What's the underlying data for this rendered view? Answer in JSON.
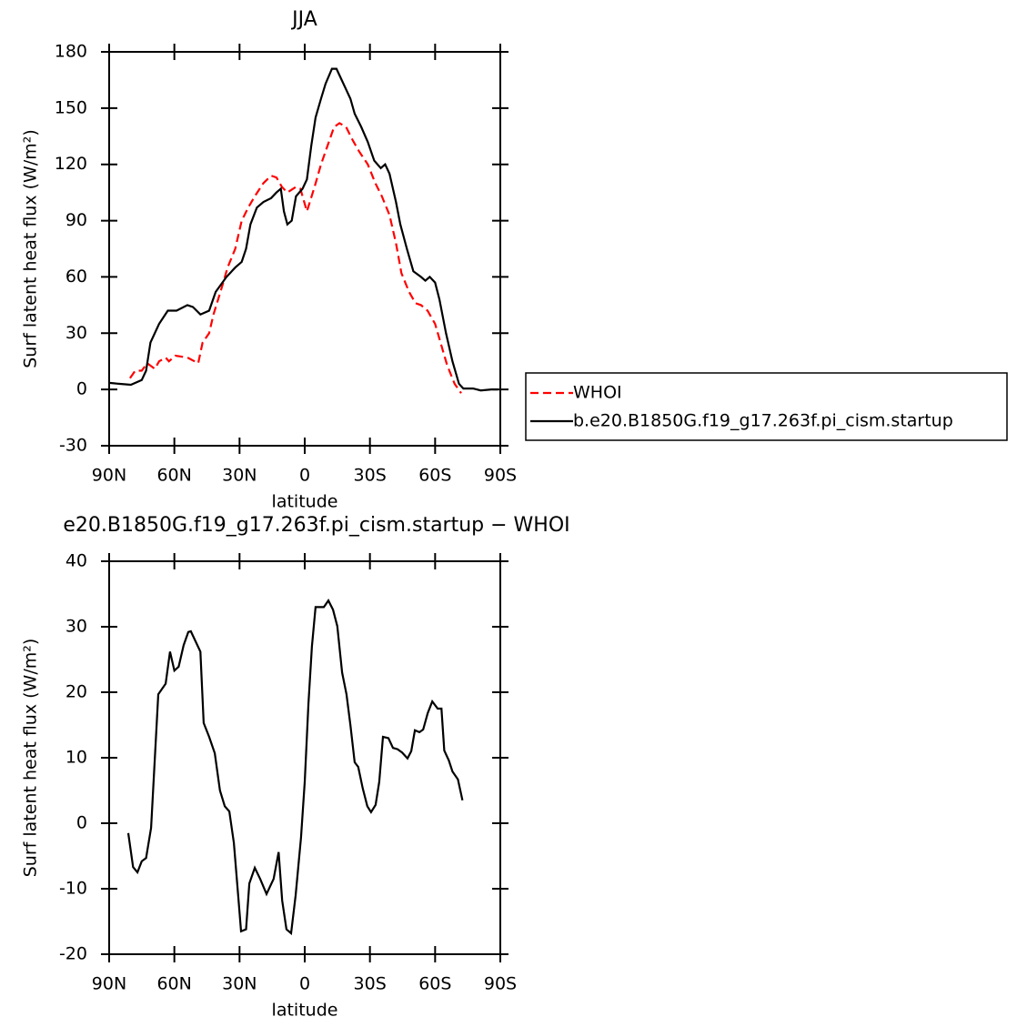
{
  "chart_data": [
    {
      "type": "line",
      "title": "JJA",
      "xlabel": "latitude",
      "ylabel": "Surf latent heat flux (W/m²)",
      "xlim": [
        90,
        -90
      ],
      "xticks": [
        {
          "value": 90,
          "label": "90N"
        },
        {
          "value": 60,
          "label": "60N"
        },
        {
          "value": 30,
          "label": "30N"
        },
        0,
        {
          "value": -30,
          "label": "30S"
        },
        {
          "value": -60,
          "label": "60S"
        },
        {
          "value": -90,
          "label": "90S"
        }
      ],
      "ylim": [
        -30,
        180
      ],
      "yticks": [
        -30,
        0,
        30,
        60,
        90,
        120,
        150,
        180
      ],
      "legend": "right",
      "series": [
        {
          "name": "WHOI",
          "color": "#ff0000",
          "style": "dashed",
          "x": [
            80.4,
            78,
            75,
            72.5,
            69,
            67,
            64,
            62.5,
            59.5,
            54,
            49,
            47,
            44,
            42,
            38,
            35.5,
            32,
            29,
            26,
            23,
            19,
            15.5,
            13,
            10.5,
            8,
            4,
            2,
            -1,
            -4.5,
            -7.5,
            -10.5,
            -13.5,
            -16,
            -19,
            -22,
            -25,
            -29,
            -32.5,
            -35.5,
            -39,
            -42,
            -44.5,
            -48,
            -51,
            -53.5,
            -56.5,
            -60,
            -62.5,
            -65.5,
            -69,
            -72
          ],
          "values": [
            6,
            10,
            10,
            14,
            11,
            15,
            17,
            15,
            18,
            17,
            14,
            25,
            30,
            40,
            55,
            65,
            75,
            90,
            97,
            103,
            110,
            114,
            113,
            108,
            105,
            108,
            107,
            95,
            108,
            120,
            130,
            140,
            142,
            140,
            133,
            127,
            120,
            110,
            103,
            93,
            78,
            62,
            52,
            46,
            45,
            42,
            35,
            25,
            13,
            3,
            -2
          ]
        },
        {
          "name": "b.e20.B1850G.f19_g17.263f.pi_cism.startup",
          "color": "#000000",
          "style": "solid",
          "x": [
            90,
            85,
            80,
            75,
            73,
            71,
            67,
            63,
            59,
            54,
            51.5,
            48,
            44,
            41,
            36,
            32,
            29,
            27,
            25,
            22,
            19,
            15.5,
            13,
            11,
            9.6,
            8,
            6,
            4,
            1,
            -1,
            -3,
            -5,
            -7.5,
            -9.6,
            -12.5,
            -14.6,
            -17,
            -19,
            -21,
            -23,
            -26,
            -29,
            -32,
            -35,
            -37,
            -39,
            -42,
            -44,
            -47,
            -50,
            -53.5,
            -55.5,
            -57.5,
            -60,
            -62,
            -65,
            -68,
            -71,
            -73,
            -77.5,
            -81,
            -86,
            -89
          ],
          "values": [
            3.5,
            3,
            2.5,
            5,
            10,
            25,
            35,
            42,
            42,
            45,
            44,
            40,
            42,
            52,
            60,
            65,
            68,
            75,
            88,
            97,
            100,
            102,
            105,
            107,
            95,
            88,
            90,
            103,
            107,
            112,
            130,
            145,
            155,
            163,
            171,
            171,
            165,
            160,
            155,
            147,
            140,
            132,
            122,
            118,
            120,
            115,
            100,
            88,
            75,
            63,
            60,
            58,
            60,
            57,
            48,
            30,
            15,
            3,
            0.5,
            0.5,
            -0.5,
            0,
            0
          ]
        }
      ]
    },
    {
      "type": "line",
      "title": "e20.B1850G.f19_g17.263f.pi_cism.startup − WHOI",
      "xlabel": "latitude",
      "ylabel": "Surf latent heat flux (W/m²)",
      "xlim": [
        90,
        -90
      ],
      "xticks": [
        {
          "value": 90,
          "label": "90N"
        },
        {
          "value": 60,
          "label": "60N"
        },
        {
          "value": 30,
          "label": "30N"
        },
        0,
        {
          "value": -30,
          "label": "30S"
        },
        {
          "value": -60,
          "label": "60S"
        },
        {
          "value": -90,
          "label": "90S"
        }
      ],
      "ylim": [
        -20,
        40
      ],
      "yticks": [
        -20,
        -10,
        0,
        10,
        20,
        30,
        40
      ],
      "series": [
        {
          "color": "#000000",
          "style": "solid",
          "x": [
            81.2,
            79,
            77,
            75,
            73,
            70.7,
            67.4,
            64,
            62,
            60,
            58,
            55.7,
            53.6,
            52.4,
            48,
            46.5,
            44,
            41.4,
            39,
            36.8,
            34.7,
            32.6,
            30.5,
            29.3,
            27,
            25.5,
            23,
            20.5,
            17.6,
            14.3,
            12,
            10.4,
            8.4,
            6.3,
            4.2,
            1.7,
            0,
            -1.7,
            -3.3,
            -5,
            -8.8,
            -10.9,
            -13,
            -15,
            -17.2,
            -19.2,
            -21,
            -23,
            -24.6,
            -26.7,
            -28.8,
            -30.5,
            -32.6,
            -34.3,
            -36,
            -38.5,
            -40.6,
            -42.7,
            -44.8,
            -47.3,
            -49,
            -50.7,
            -52.8,
            -54.5,
            -56.6,
            -58.7,
            -61.2,
            -62.9,
            -64.2,
            -66.3,
            -68,
            -70.5,
            -72.6
          ],
          "values": [
            -1.5,
            -6.7,
            -7.5,
            -5.8,
            -5.3,
            -0.7,
            19.7,
            21.3,
            26.2,
            23.3,
            23.9,
            27.2,
            29.2,
            29.3,
            26.2,
            15.3,
            13.2,
            10.7,
            5,
            2.6,
            1.8,
            -3,
            -11.5,
            -16.5,
            -16.2,
            -9.2,
            -6.8,
            -8.5,
            -10.8,
            -8.5,
            -4.4,
            -11.8,
            -16.2,
            -16.8,
            -11,
            -2.2,
            6.3,
            18.3,
            27,
            33,
            33,
            34,
            32.6,
            30.1,
            23,
            19.7,
            15,
            9.3,
            8.6,
            5.3,
            2.6,
            1.7,
            2.8,
            6.3,
            13.2,
            13,
            11.5,
            11.3,
            10.8,
            9.9,
            11,
            14.2,
            13.9,
            14.3,
            16.8,
            18.6,
            17.5,
            17.5,
            11.1,
            9.6,
            7.9,
            6.7,
            3.5
          ]
        }
      ]
    }
  ]
}
